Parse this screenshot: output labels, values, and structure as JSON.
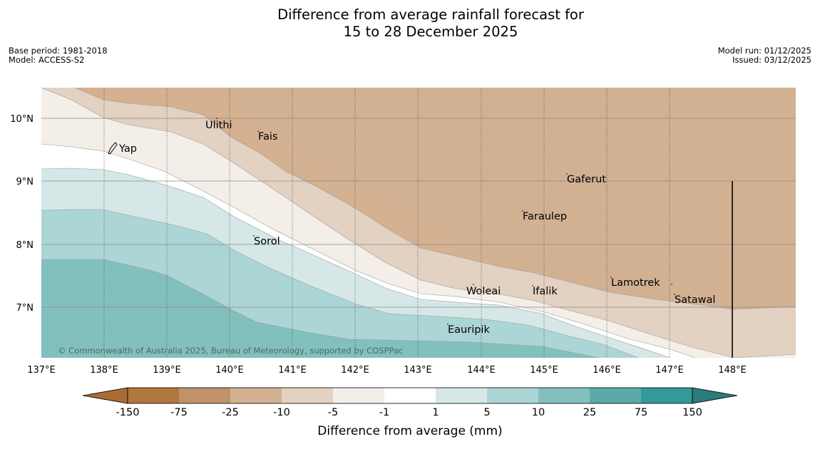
{
  "map": {
    "title_line1": "Difference from average rainfall forecast for",
    "title_line2": "15 to 28 December 2025",
    "base_period": "Base period: 1981-2018",
    "model": "Model: ACCESS-S2",
    "model_run": "Model run: 01/12/2025",
    "issued": "Issued: 03/12/2025",
    "credit": "© Commonwealth of Australia 2025, Bureau of Meteorology, supported by COSPPac",
    "lon_labels": [
      "137°E",
      "138°E",
      "139°E",
      "140°E",
      "141°E",
      "142°E",
      "143°E",
      "144°E",
      "145°E",
      "146°E",
      "147°E",
      "148°E"
    ],
    "lat_labels": [
      "10°N",
      "9°N",
      "8°N",
      "7°N"
    ],
    "places": [
      "Yap",
      "Ulithi",
      "Fais",
      "Gaferut",
      "Faraulep",
      "Sorol",
      "Woleai",
      "Ifalik",
      "Lamotrek",
      "Satawal",
      "Eauripik"
    ]
  },
  "legend": {
    "title": "Difference from average (mm)",
    "ticks": [
      "-150",
      "-75",
      "-25",
      "-10",
      "-5",
      "-1",
      "1",
      "5",
      "10",
      "25",
      "75",
      "150"
    ],
    "colors": [
      "#a86b35",
      "#b0773e",
      "#c0926a",
      "#d4b190",
      "#e3d1c1",
      "#f4eee9",
      "#ffffff",
      "#d5e8e7",
      "#acd5d5",
      "#82c0be",
      "#59aaa9",
      "#33999a",
      "#2d7b7c"
    ]
  }
}
